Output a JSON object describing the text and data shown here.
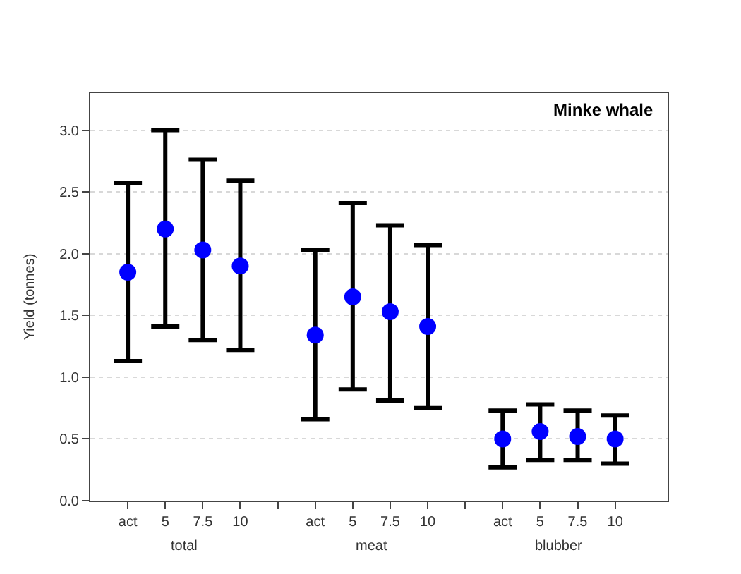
{
  "chart_data": {
    "type": "scatter",
    "title": "Minke whale",
    "ylabel": "Yield (tonnes)",
    "categories": [
      "act",
      "5",
      "7.5",
      "10",
      null,
      "act",
      "5",
      "7.5",
      "10",
      null,
      "act",
      "5",
      "7.5",
      "10"
    ],
    "annotations": [
      "total",
      "meat",
      "blubber"
    ],
    "series": [
      {
        "color": "#0000ff",
        "values": [
          1.85,
          2.2,
          2.03,
          1.9,
          null,
          1.34,
          1.65,
          1.53,
          1.41,
          null,
          0.5,
          0.56,
          0.52,
          0.5
        ],
        "errors": [
          [
            1.13,
            2.57
          ],
          [
            1.41,
            3.0
          ],
          [
            1.3,
            2.76
          ],
          [
            1.22,
            2.59
          ],
          null,
          [
            0.66,
            2.03
          ],
          [
            0.9,
            2.41
          ],
          [
            0.81,
            2.23
          ],
          [
            0.75,
            2.07
          ],
          null,
          [
            0.27,
            0.73
          ],
          [
            0.33,
            0.78
          ],
          [
            0.33,
            0.73
          ],
          [
            0.3,
            0.69
          ]
        ]
      }
    ],
    "ylim": [
      0,
      3.3
    ],
    "yticks": [
      {
        "value": 0,
        "label": "0.0"
      },
      {
        "value": 0.5,
        "label": "0.5"
      },
      {
        "value": 1,
        "label": "1.0"
      },
      {
        "value": 1.5,
        "label": "1.5"
      },
      {
        "value": 2,
        "label": "2.0"
      },
      {
        "value": 2.5,
        "label": "2.5"
      },
      {
        "value": 3,
        "label": "3.0"
      }
    ],
    "grid": "y",
    "legend": false,
    "marker": "circle"
  }
}
